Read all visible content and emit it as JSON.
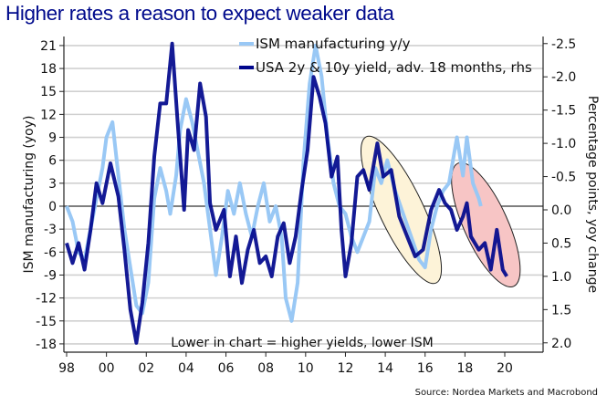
{
  "chart_data": {
    "type": "line",
    "title": "Higher rates a reason to expect weaker data",
    "ylabel_left": "ISM manufacturing (yoy)",
    "ylabel_right": "Percentage points, yoy change",
    "annotation": "Lower in chart = higher yields, lower ISM",
    "source": "Source: Nordea Markets and Macrobond",
    "grid": true,
    "legend_position": "top-center",
    "x_ticks": [
      "98",
      "00",
      "02",
      "04",
      "06",
      "08",
      "10",
      "12",
      "14",
      "16",
      "18",
      "20"
    ],
    "x_tick_years": [
      1998,
      2000,
      2002,
      2004,
      2006,
      2008,
      2010,
      2012,
      2014,
      2016,
      2018,
      2020
    ],
    "xlim": [
      1997.9,
      2020.9
    ],
    "left_axis": {
      "ticks": [
        21,
        18,
        15,
        12,
        9,
        6,
        3,
        0,
        -3,
        -6,
        -9,
        -12,
        -15,
        -18
      ],
      "ylim": [
        -18.6,
        21.4
      ]
    },
    "right_axis": {
      "ticks": [
        "-2.5",
        "-2.0",
        "-1.5",
        "-1.0",
        "-0.5",
        "0.0",
        "0.5",
        "1.0",
        "1.5",
        "2.0"
      ],
      "tick_values": [
        -2.5,
        -2.0,
        -1.5,
        -1.0,
        -0.5,
        0.0,
        0.5,
        1.0,
        1.5,
        2.0
      ],
      "inverted": true,
      "ylim": [
        -2.6,
        2.05
      ]
    },
    "series": [
      {
        "name": "ISM manufacturing y/y",
        "axis": "left",
        "color": "#99c8f5",
        "x": [
          1998.0,
          1998.3,
          1998.6,
          1998.9,
          1999.2,
          1999.5,
          1999.8,
          2000.0,
          2000.3,
          2000.6,
          2000.9,
          2001.2,
          2001.5,
          2001.8,
          2002.1,
          2002.4,
          2002.7,
          2003.0,
          2003.2,
          2003.5,
          2003.7,
          2004.0,
          2004.3,
          2004.6,
          2004.9,
          2005.2,
          2005.5,
          2005.8,
          2006.1,
          2006.4,
          2006.7,
          2007.0,
          2007.3,
          2007.6,
          2007.9,
          2008.2,
          2008.5,
          2008.8,
          2009.0,
          2009.3,
          2009.6,
          2009.9,
          2010.2,
          2010.5,
          2010.8,
          2011.1,
          2011.4,
          2011.7,
          2012.0,
          2012.3,
          2012.6,
          2012.9,
          2013.2,
          2013.5,
          2013.8,
          2014.1,
          2014.5,
          2014.9,
          2015.3,
          2015.7,
          2016.0,
          2016.3,
          2016.6,
          2016.9,
          2017.2,
          2017.6,
          2017.9,
          2018.1,
          2018.4,
          2018.7,
          2018.8
        ],
        "values": [
          0,
          -2,
          -6,
          -7,
          -3,
          1,
          5,
          9,
          11,
          4,
          -3,
          -8,
          -13,
          -14,
          -10,
          1,
          5,
          2,
          -1,
          4,
          10,
          14,
          11,
          7,
          3,
          -3,
          -9,
          -4,
          2,
          -1,
          3,
          -1,
          -4,
          0,
          3,
          -2,
          0,
          -4,
          -12,
          -15,
          -10,
          6,
          16,
          21,
          17,
          9,
          3,
          0,
          -1,
          -4,
          -6,
          -4,
          -2,
          5,
          3,
          6,
          2,
          -1,
          -4,
          -7,
          -8,
          -3,
          0,
          2,
          3,
          9,
          4,
          9,
          3,
          1,
          0
        ]
      },
      {
        "name": "USA 2y & 10y yield, adv. 18 months, rhs",
        "axis": "right",
        "color": "#00068c",
        "x": [
          1998.0,
          1998.3,
          1998.6,
          1998.9,
          1999.2,
          1999.5,
          1999.8,
          2000.2,
          2000.6,
          2000.9,
          2001.2,
          2001.5,
          2001.8,
          2002.1,
          2002.4,
          2002.7,
          2003.0,
          2003.3,
          2003.6,
          2003.9,
          2004.1,
          2004.4,
          2004.7,
          2005.0,
          2005.2,
          2005.5,
          2005.9,
          2006.2,
          2006.5,
          2006.8,
          2007.1,
          2007.4,
          2007.7,
          2008.0,
          2008.3,
          2008.6,
          2008.9,
          2009.2,
          2009.5,
          2009.8,
          2010.1,
          2010.4,
          2010.7,
          2011.0,
          2011.3,
          2011.6,
          2011.8,
          2012.0,
          2012.3,
          2012.6,
          2012.9,
          2013.2,
          2013.6,
          2013.9,
          2014.3,
          2014.7,
          2015.1,
          2015.5,
          2015.9,
          2016.3,
          2016.7,
          2017.0,
          2017.3,
          2017.6,
          2017.9,
          2018.1,
          2018.3,
          2018.7,
          2019.0,
          2019.3,
          2019.6,
          2019.9,
          2020.1
        ],
        "values": [
          0.5,
          0.8,
          0.5,
          0.9,
          0.3,
          -0.4,
          -0.1,
          -0.7,
          -0.2,
          0.6,
          1.5,
          2.0,
          1.4,
          0.5,
          -0.8,
          -1.6,
          -1.6,
          -2.5,
          -1.2,
          0.0,
          -1.2,
          -0.9,
          -1.9,
          -1.4,
          -0.1,
          0.3,
          0.0,
          1.0,
          0.4,
          1.1,
          0.6,
          0.3,
          0.8,
          0.7,
          1.0,
          0.4,
          0.2,
          0.8,
          0.4,
          -0.3,
          -0.9,
          -2.0,
          -1.7,
          -1.3,
          -0.5,
          -0.8,
          0.3,
          1.0,
          0.5,
          -0.5,
          -0.6,
          -0.3,
          -1.0,
          -0.5,
          -0.6,
          0.1,
          0.4,
          0.7,
          0.6,
          0.0,
          -0.3,
          -0.1,
          0.0,
          0.3,
          0.1,
          -0.1,
          0.4,
          0.6,
          0.5,
          0.9,
          0.3,
          0.9,
          1.0
        ]
      }
    ],
    "highlights": [
      {
        "name": "ellipse-2013-2016",
        "color": "#fdf3d8",
        "years": [
          2013.2,
          2016.4
        ],
        "rhs_range": [
          -1.0,
          1.0
        ]
      },
      {
        "name": "ellipse-2017-2020",
        "color": "#f7c5c5",
        "years": [
          2017.8,
          2020.3
        ],
        "rhs_range": [
          -0.6,
          1.05
        ]
      }
    ],
    "zero_line": 0
  }
}
